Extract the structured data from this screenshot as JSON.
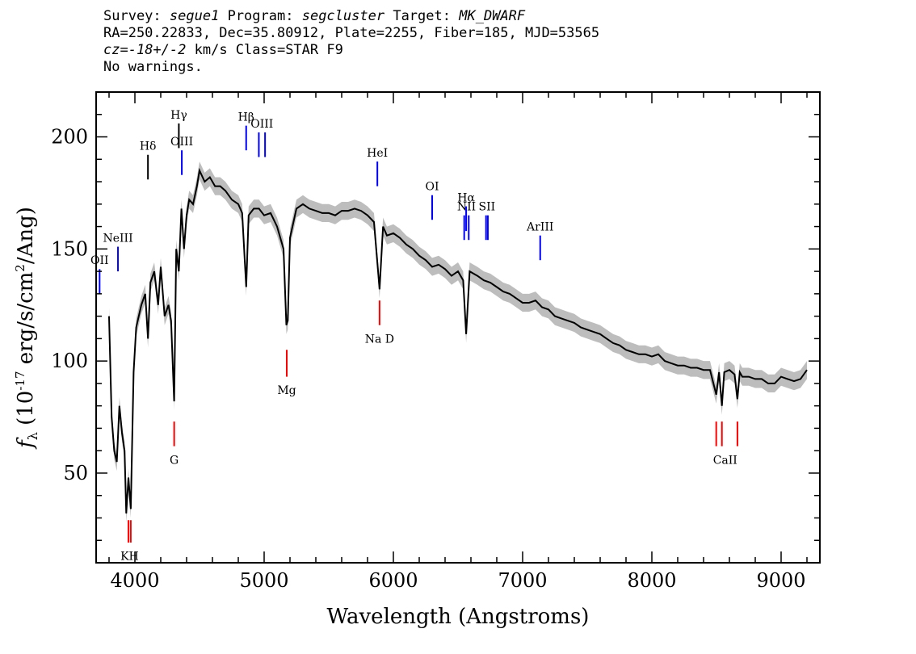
{
  "header": {
    "line1": {
      "survey_label": "Survey:",
      "survey": "segue1",
      "program_label": "Program:",
      "program": "segcluster",
      "target_label": "Target:",
      "target": "MK_DWARF"
    },
    "line2": "RA=250.22833, Dec=35.80912, Plate=2255, Fiber=185, MJD=53565",
    "line3": {
      "cz_label": "cz=",
      "cz_value": "-18+/-2",
      "cz_rest": " km/s Class=STAR F9"
    },
    "line4": "No warnings."
  },
  "chart_data": {
    "type": "line",
    "title": "",
    "xlabel": "Wavelength (Angstroms)",
    "ylabel": "f_λ (10^-17 erg/s/cm^2/Ang)",
    "xlim": [
      3700,
      9300
    ],
    "ylim": [
      10,
      220
    ],
    "x_ticks": [
      4000,
      5000,
      6000,
      7000,
      8000,
      9000
    ],
    "y_ticks": [
      50,
      100,
      150,
      200
    ],
    "grid": false,
    "colors": {
      "spectrum": "#000000",
      "error_band": "#bdbdbd",
      "emission": "#0000ff",
      "absorption": "#ff0000",
      "balmer": "#000000"
    },
    "series": [
      {
        "x": [
          3800,
          3820,
          3840,
          3860,
          3880,
          3900,
          3920,
          3933,
          3950,
          3968,
          3990,
          4010,
          4050,
          4080,
          4101,
          4120,
          4150,
          4180,
          4200,
          4230,
          4260,
          4280,
          4304,
          4320,
          4340,
          4360,
          4380,
          4400,
          4420,
          4450,
          4480,
          4500,
          4540,
          4580,
          4620,
          4660,
          4700,
          4750,
          4800,
          4830,
          4861,
          4880,
          4920,
          4960,
          5000,
          5050,
          5100,
          5150,
          5172,
          5183,
          5200,
          5250,
          5300,
          5350,
          5400,
          5450,
          5500,
          5550,
          5600,
          5650,
          5700,
          5750,
          5800,
          5850,
          5893,
          5920,
          5950,
          6000,
          6050,
          6100,
          6150,
          6200,
          6250,
          6300,
          6350,
          6400,
          6450,
          6500,
          6540,
          6563,
          6590,
          6650,
          6700,
          6750,
          6800,
          6850,
          6900,
          6950,
          7000,
          7050,
          7100,
          7150,
          7200,
          7250,
          7300,
          7350,
          7400,
          7450,
          7500,
          7550,
          7600,
          7650,
          7700,
          7750,
          7800,
          7850,
          7900,
          7950,
          8000,
          8050,
          8100,
          8150,
          8200,
          8250,
          8300,
          8350,
          8400,
          8450,
          8498,
          8520,
          8542,
          8560,
          8600,
          8640,
          8662,
          8680,
          8700,
          8750,
          8800,
          8850,
          8900,
          8950,
          9000,
          9050,
          9100,
          9150,
          9200
        ],
        "y": [
          120,
          75,
          60,
          55,
          80,
          68,
          60,
          32,
          48,
          34,
          95,
          115,
          125,
          130,
          110,
          135,
          140,
          125,
          142,
          120,
          125,
          118,
          82,
          150,
          140,
          168,
          150,
          165,
          172,
          170,
          178,
          185,
          180,
          182,
          178,
          178,
          176,
          172,
          170,
          166,
          133,
          165,
          168,
          168,
          165,
          166,
          160,
          150,
          116,
          118,
          155,
          168,
          170,
          168,
          167,
          166,
          166,
          165,
          167,
          167,
          168,
          167,
          165,
          162,
          132,
          160,
          156,
          157,
          155,
          152,
          150,
          147,
          145,
          142,
          143,
          141,
          138,
          140,
          136,
          112,
          140,
          138,
          136,
          135,
          133,
          131,
          130,
          128,
          126,
          126,
          127,
          124,
          123,
          120,
          119,
          118,
          117,
          115,
          114,
          113,
          112,
          110,
          108,
          107,
          105,
          104,
          103,
          103,
          102,
          103,
          100,
          99,
          98,
          98,
          97,
          97,
          96,
          96,
          85,
          95,
          80,
          95,
          96,
          94,
          83,
          95,
          93,
          93,
          92,
          92,
          90,
          90,
          93,
          92,
          91,
          92,
          96
        ]
      }
    ],
    "line_markers": [
      {
        "label": "KH",
        "type": "absorption",
        "x": 3950,
        "x2": 3968,
        "y0": 19,
        "y1": 29,
        "label_y": 13
      },
      {
        "label": "G",
        "type": "absorption",
        "x": 4304,
        "y0": 62,
        "y1": 73,
        "label_y": 56
      },
      {
        "label": "Mg",
        "type": "absorption",
        "x": 5175,
        "y0": 93,
        "y1": 105,
        "label_y": 87
      },
      {
        "label": "Na D",
        "type": "absorption",
        "x": 5893,
        "y0": 116,
        "y1": 127,
        "label_y": 110
      },
      {
        "label": "CaII",
        "type": "absorption",
        "x": 8498,
        "x2": 8542,
        "x3": 8662,
        "y0": 62,
        "y1": 73,
        "label_y": 56
      },
      {
        "label": "OII",
        "type": "emission",
        "x": 3727,
        "y0": 130,
        "y1": 141,
        "label_y": 145
      },
      {
        "label": "NeIII",
        "type": "emission",
        "x": 3869,
        "y0": 140,
        "y1": 151,
        "label_y": 155
      },
      {
        "label": "Hδ",
        "type": "balmer",
        "x": 4101,
        "y0": 181,
        "y1": 192,
        "label_y": 196
      },
      {
        "label": "Hγ",
        "type": "balmer",
        "x": 4340,
        "y0": 195,
        "y1": 206,
        "label_y": 210
      },
      {
        "label": "OIII",
        "type": "emission",
        "x": 4363,
        "y0": 183,
        "y1": 194,
        "label_y": 198
      },
      {
        "label": "Hβ",
        "type": "emission",
        "x": 4861,
        "y0": 194,
        "y1": 205,
        "label_y": 209
      },
      {
        "label": "OIII",
        "type": "emission",
        "x": 4959,
        "x2": 5007,
        "y0": 191,
        "y1": 202,
        "label_y": 206
      },
      {
        "label": "HeI",
        "type": "emission",
        "x": 5876,
        "y0": 178,
        "y1": 189,
        "label_y": 193
      },
      {
        "label": "OI",
        "type": "emission",
        "x": 6300,
        "y0": 163,
        "y1": 174,
        "label_y": 178
      },
      {
        "label": "NII",
        "type": "emission",
        "x": 6548,
        "x2": 6583,
        "y0": 154,
        "y1": 165,
        "label_y": 169
      },
      {
        "label": "Hα",
        "type": "emission",
        "x": 6563,
        "y0": 158,
        "y1": 169,
        "label_y": 173
      },
      {
        "label": "SII",
        "type": "emission",
        "x": 6717,
        "x2": 6731,
        "y0": 154,
        "y1": 165,
        "label_y": 169
      },
      {
        "label": "ArIII",
        "type": "emission",
        "x": 7136,
        "y0": 145,
        "y1": 156,
        "label_y": 160
      }
    ]
  }
}
